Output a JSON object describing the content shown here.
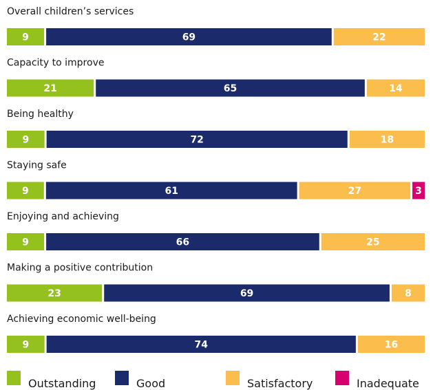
{
  "chart_data": {
    "type": "bar",
    "stacked": true,
    "orientation": "horizontal",
    "categories": [
      "Overall children’s services",
      "Capacity to improve",
      "Being healthy",
      "Staying safe",
      "Enjoying and achieving",
      "Making a positive contribution",
      "Achieving economic well-being"
    ],
    "series": [
      {
        "name": "Outstanding",
        "color": "#95c11f",
        "values": [
          9,
          21,
          9,
          9,
          9,
          23,
          9
        ]
      },
      {
        "name": "Good",
        "color": "#1b2a6b",
        "values": [
          69,
          65,
          72,
          61,
          66,
          69,
          74
        ]
      },
      {
        "name": "Satisfactory",
        "color": "#fbbd4c",
        "values": [
          22,
          14,
          18,
          27,
          25,
          8,
          16
        ]
      },
      {
        "name": "Inadequate",
        "color": "#d6006f",
        "values": [
          0,
          0,
          0,
          3,
          0,
          0,
          0
        ]
      }
    ],
    "legend_position": "bottom",
    "grid": false,
    "xlim": [
      0,
      100
    ]
  }
}
